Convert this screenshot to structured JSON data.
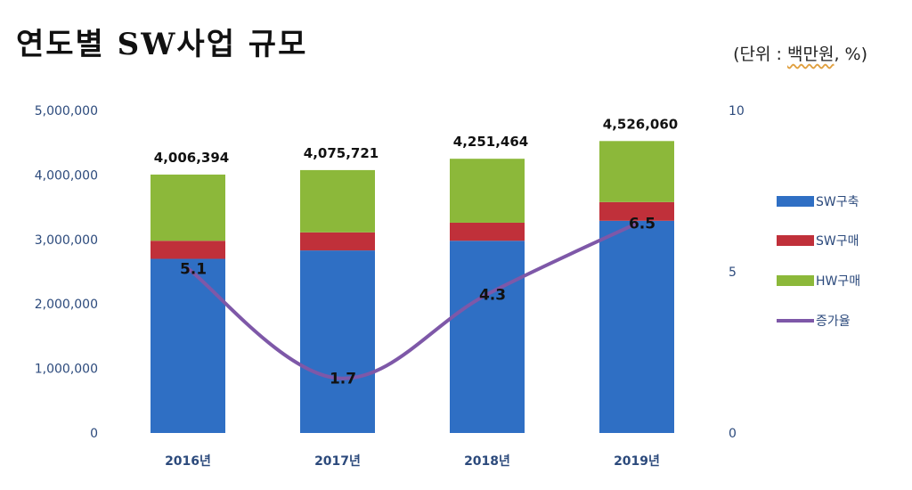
{
  "header": {
    "title": "연도별 SW사업 규모",
    "unit_open": "(단위 : ",
    "unit_word": "백만원",
    "unit_close": ", %)"
  },
  "chart_data": {
    "type": "bar",
    "stacked": true,
    "categories": [
      "2016년",
      "2017년",
      "2018년",
      "2019년"
    ],
    "series": [
      {
        "name": "SW구축",
        "values": [
          2700000,
          2830000,
          2980000,
          3290000
        ],
        "color": "#2f6fc4"
      },
      {
        "name": "SW구매",
        "values": [
          280000,
          280000,
          280000,
          290000
        ],
        "color": "#c0303a"
      },
      {
        "name": "HW구매",
        "values": [
          1026394,
          965721,
          991464,
          946060
        ],
        "color": "#8cb83a"
      }
    ],
    "totals": [
      4006394,
      4075721,
      4251464,
      4526060
    ],
    "total_labels": [
      "4,006,394",
      "4,075,721",
      "4,251,464",
      "4,526,060"
    ],
    "line": {
      "name": "증가율",
      "values": [
        5.1,
        1.7,
        4.3,
        6.5
      ],
      "labels": [
        "5.1",
        "1.7",
        "4.3",
        "6.5"
      ],
      "color": "#7e58a8",
      "axis": "right"
    },
    "y_left": {
      "ylim": [
        0,
        5000000
      ],
      "ticks": [
        "0",
        "1,000,000",
        "2,000,000",
        "3,000,000",
        "4,000,000",
        "5,000,000"
      ]
    },
    "y_right": {
      "ylim": [
        0,
        10
      ],
      "ticks": [
        "0",
        "5",
        "10"
      ],
      "tick_values": [
        0,
        5,
        10
      ]
    },
    "legend": {
      "position": "right",
      "items": [
        "SW구축",
        "SW구매",
        "HW구매",
        "증가율"
      ]
    },
    "grid": false
  }
}
